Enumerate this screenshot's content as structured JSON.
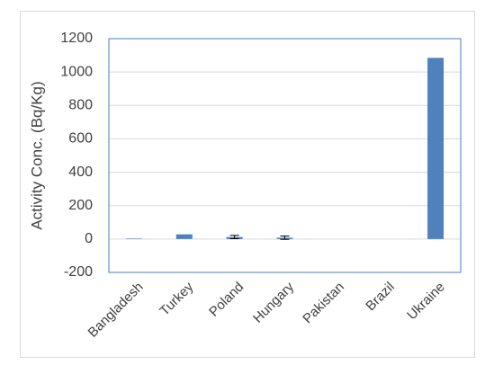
{
  "chart_data": {
    "type": "bar",
    "y_label": "Activity Conc. (Bq/Kg)",
    "categories": [
      "Bangladesh",
      "Turkey",
      "Poland",
      "Hungary",
      "Pakistan",
      "Brazil",
      "Ukraine"
    ],
    "values": [
      3,
      28,
      12,
      8,
      0,
      0,
      1085
    ],
    "errors": [
      null,
      null,
      10,
      10,
      null,
      null,
      null
    ],
    "color": "#4f81bd",
    "ylim": [
      -200,
      1200
    ],
    "yticks": [
      -200,
      0,
      200,
      400,
      600,
      800,
      1000,
      1200
    ],
    "grid": true
  }
}
